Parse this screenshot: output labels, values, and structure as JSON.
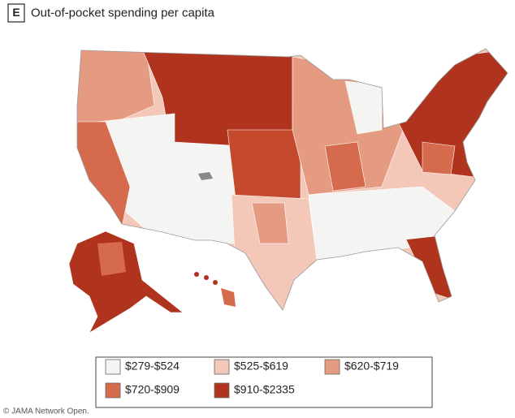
{
  "panel_label": "E",
  "title": "Out-of-pocket spending per capita",
  "legend": {
    "items": [
      {
        "label": "$279-$524",
        "color": "#f4f4f2"
      },
      {
        "label": "$525-$619",
        "color": "#f3c8b9"
      },
      {
        "label": "$620-$719",
        "color": "#e59b82"
      },
      {
        "label": "$720-$909",
        "color": "#d66a4c"
      },
      {
        "label": "$910-$2335",
        "color": "#b0341d"
      }
    ]
  },
  "credit": "© JAMA Network Open."
}
